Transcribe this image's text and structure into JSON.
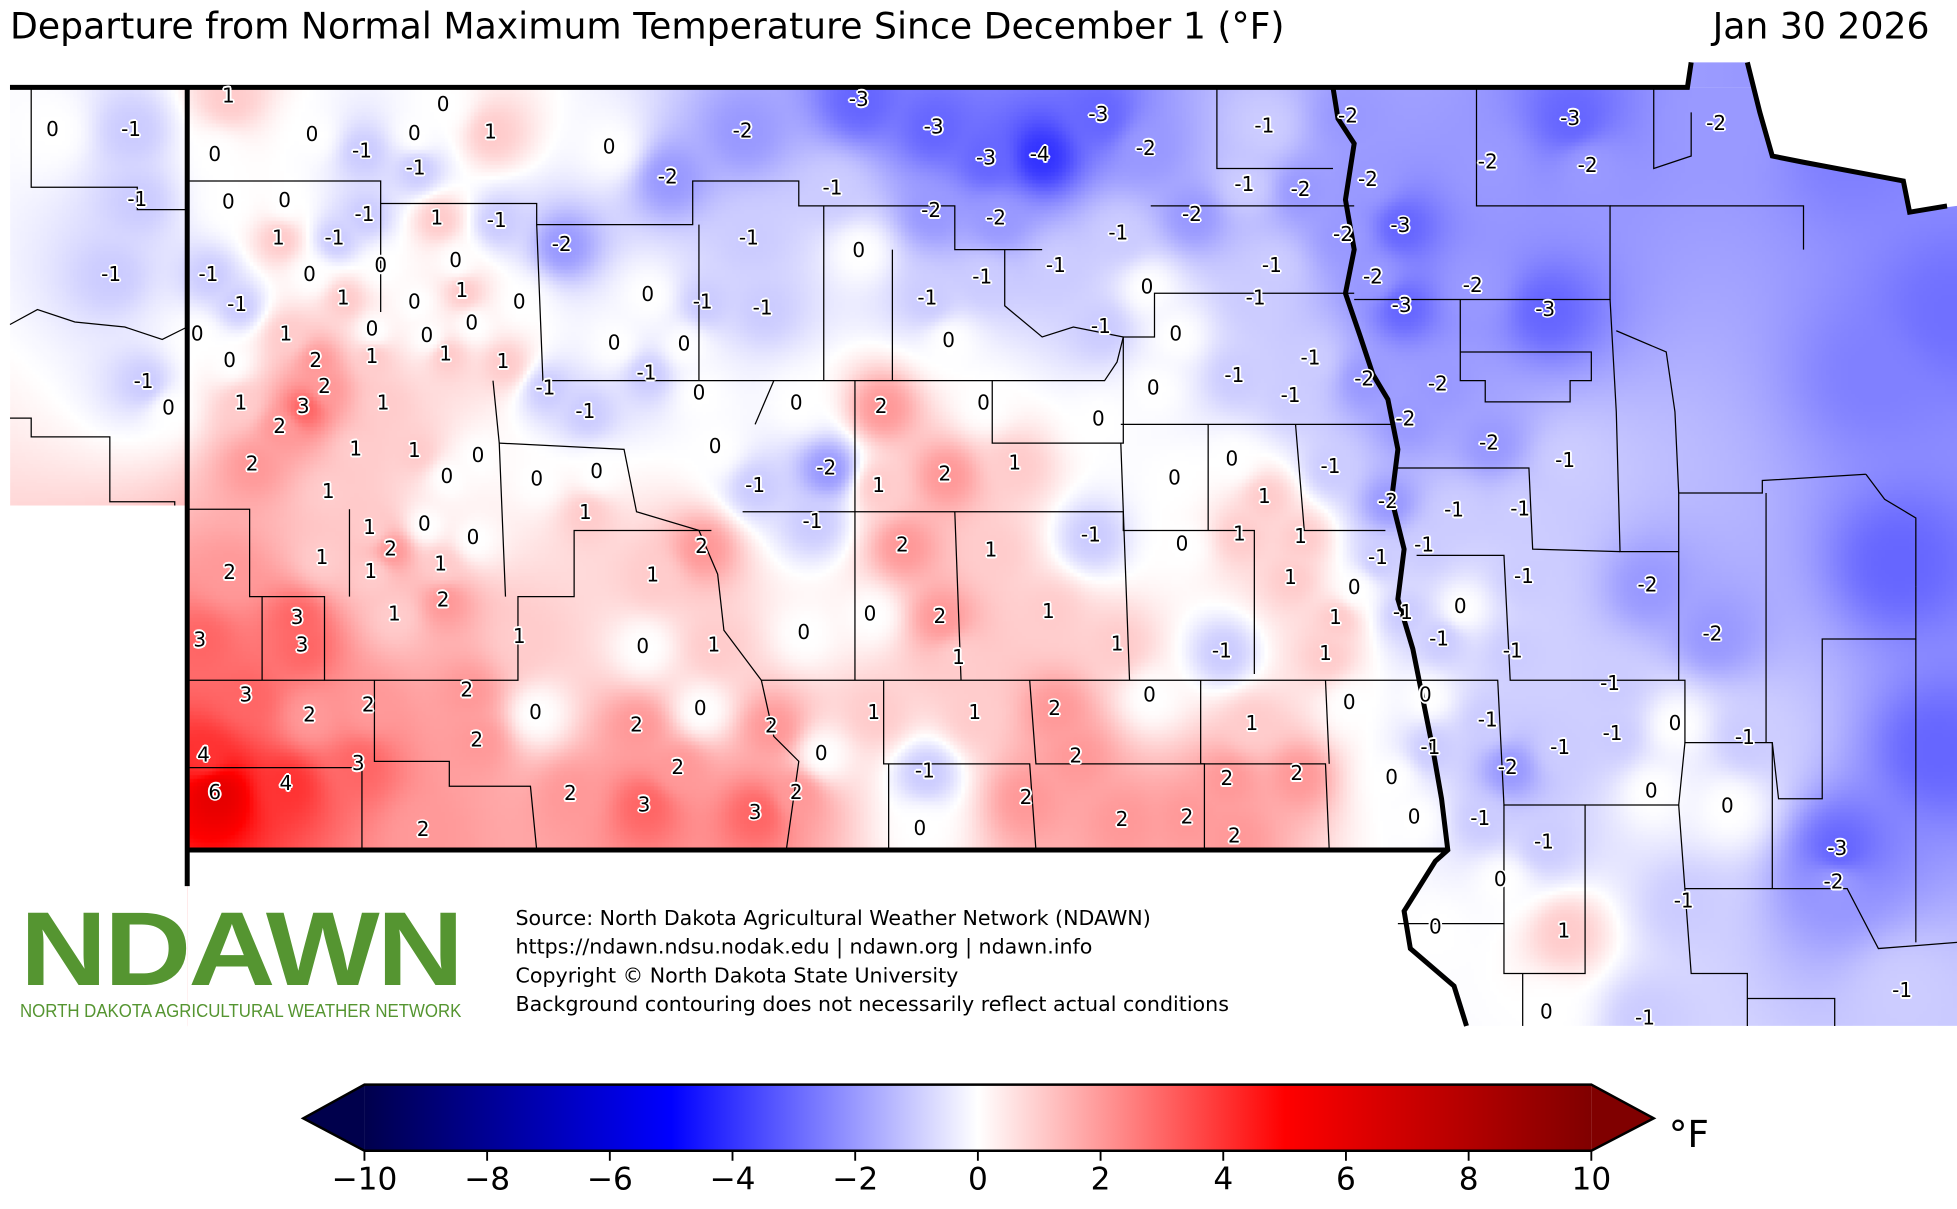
{
  "header": {
    "title": "Departure from Normal Maximum Temperature Since December 1 (°F)",
    "date": "Jan 30 2026"
  },
  "logo": {
    "main": "NDAWN",
    "sub": "NORTH DAKOTA AGRICULTURAL WEATHER NETWORK",
    "color": "#559531"
  },
  "source": {
    "line1": "Source: North Dakota Agricultural Weather Network (NDAWN)",
    "line2": "https://ndawn.ndsu.nodak.edu | ndawn.org | ndawn.info",
    "line3": "Copyright © North Dakota State University",
    "line4": "Background contouring does not necessarily reflect actual conditions"
  },
  "colorbar": {
    "min": -10,
    "max": 10,
    "unit": "°F",
    "ticks": [
      "−10",
      "−8",
      "−6",
      "−4",
      "−2",
      "0",
      "2",
      "4",
      "6",
      "8",
      "10"
    ],
    "colors": [
      "#00004c",
      "#0000ff",
      "#ffffff",
      "#ff0000",
      "#800000"
    ]
  },
  "stations": {
    "values": [
      "1",
      "0",
      "0",
      "-1",
      "0",
      "0",
      "1",
      "-1",
      "0",
      "-1",
      "0",
      "-3",
      "-2",
      "-3",
      "-3",
      "-2",
      "-4",
      "-3",
      "-1",
      "-2",
      "-3",
      "-2",
      "-2",
      "-1",
      "-1",
      "-2",
      "-2",
      "-2",
      "-2",
      "-1",
      "0",
      "0",
      "-1",
      "1",
      "-1",
      "-2",
      "-2",
      "-2",
      "-2",
      "-3",
      "1",
      "-1",
      "-2",
      "-1",
      "0",
      "-1",
      "-1",
      "-1",
      "0",
      "0",
      "0",
      "-1",
      "-1",
      "-1",
      "-2",
      "-2",
      "-1",
      "1",
      "0",
      "1",
      "0",
      "0",
      "-1",
      "-1",
      "-1",
      "0",
      "-1",
      "-3",
      "-3",
      "0",
      "1",
      "0",
      "0",
      "0",
      "-1",
      "0",
      "0",
      "0",
      "0",
      "0",
      "2",
      "1",
      "1",
      "1",
      "2",
      "-1",
      "-1",
      "0",
      "-1",
      "-1",
      "-2",
      "-2",
      "-1",
      "0",
      "1",
      "3",
      "1",
      "-1",
      "0",
      "2",
      "0",
      "0",
      "0",
      "-1",
      "-2",
      "2",
      "1",
      "1",
      "0",
      "0",
      "-2",
      "-1",
      "2",
      "0",
      "0",
      "0",
      "-1",
      "-2",
      "1",
      "2",
      "1",
      "0",
      "0",
      "-1",
      "-2",
      "1",
      "1",
      "1",
      "-1",
      "-1",
      "1",
      "0",
      "0",
      "-1",
      "-1",
      "0",
      "1",
      "1",
      "-1",
      "-1",
      "2",
      "1",
      "2",
      "1",
      "1",
      "2",
      "1",
      "2",
      "1",
      "1",
      "0",
      "-1",
      "-2",
      "3",
      "2",
      "1",
      "0",
      "2",
      "1",
      "0",
      "1",
      "0",
      "-1",
      "3",
      "3",
      "1",
      "0",
      "1",
      "1",
      "-1",
      "1",
      "-1",
      "-1",
      "-2",
      "1",
      "3",
      "2",
      "2",
      "2",
      "0",
      "0",
      "0",
      "-1",
      "0",
      "2",
      "0",
      "2",
      "1",
      "1",
      "2",
      "1",
      "-1",
      "-1",
      "-1",
      "0",
      "-1",
      "4",
      "2",
      "0",
      "2",
      "-1",
      "-2",
      "3",
      "2",
      "-1",
      "6",
      "4",
      "2",
      "3",
      "2",
      "2",
      "2",
      "2",
      "0",
      "0",
      "0",
      "2",
      "3",
      "0",
      "2",
      "2",
      "2",
      "0",
      "-1",
      "-1",
      "-3",
      "0",
      "-2",
      "-1",
      "0",
      "1",
      "0",
      "-1",
      "-1"
    ]
  }
}
